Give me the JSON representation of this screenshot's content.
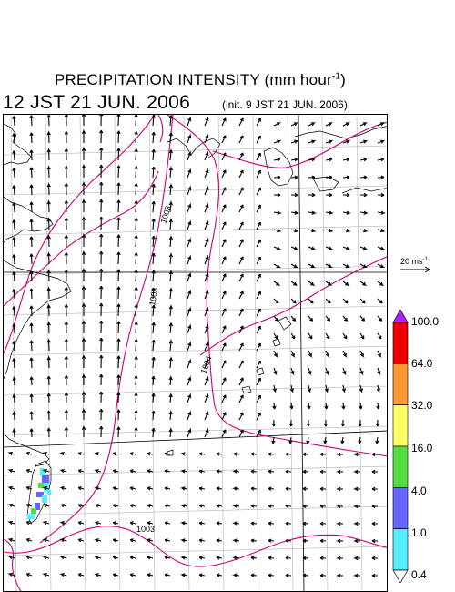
{
  "header": {
    "title_text": "PRECIPITATION INTENSITY (mm hour",
    "title_exp": "-1",
    "title_close": ")",
    "valid_time": "12 JST 21 JUN. 2006",
    "init_time": "(init. 9 JST 21 JUN. 2006)"
  },
  "reference_vector": {
    "label": "20 ms",
    "exp": "-1",
    "speed_ms": 20
  },
  "isobars": [
    {
      "label": "1003",
      "hpa": 1003
    },
    {
      "label": "1003",
      "hpa": 1003
    },
    {
      "label": "1004",
      "hpa": 1004
    },
    {
      "label": "1003",
      "hpa": 1003
    }
  ],
  "colorbar": {
    "labels": [
      "100.0",
      "64.0",
      "32.0",
      "16.0",
      "4.0",
      "1.0",
      "0.4"
    ],
    "colors": [
      "#ee0000",
      "#ff9933",
      "#ffff66",
      "#55dd44",
      "#6666ff",
      "#55eeff"
    ],
    "over_color": "#aa22ff",
    "unit": "mm hour-1"
  },
  "colors": {
    "isobar": "#cc0077",
    "grid": "#b4b4b4",
    "coast": "#000000",
    "arrow": "#000000"
  }
}
